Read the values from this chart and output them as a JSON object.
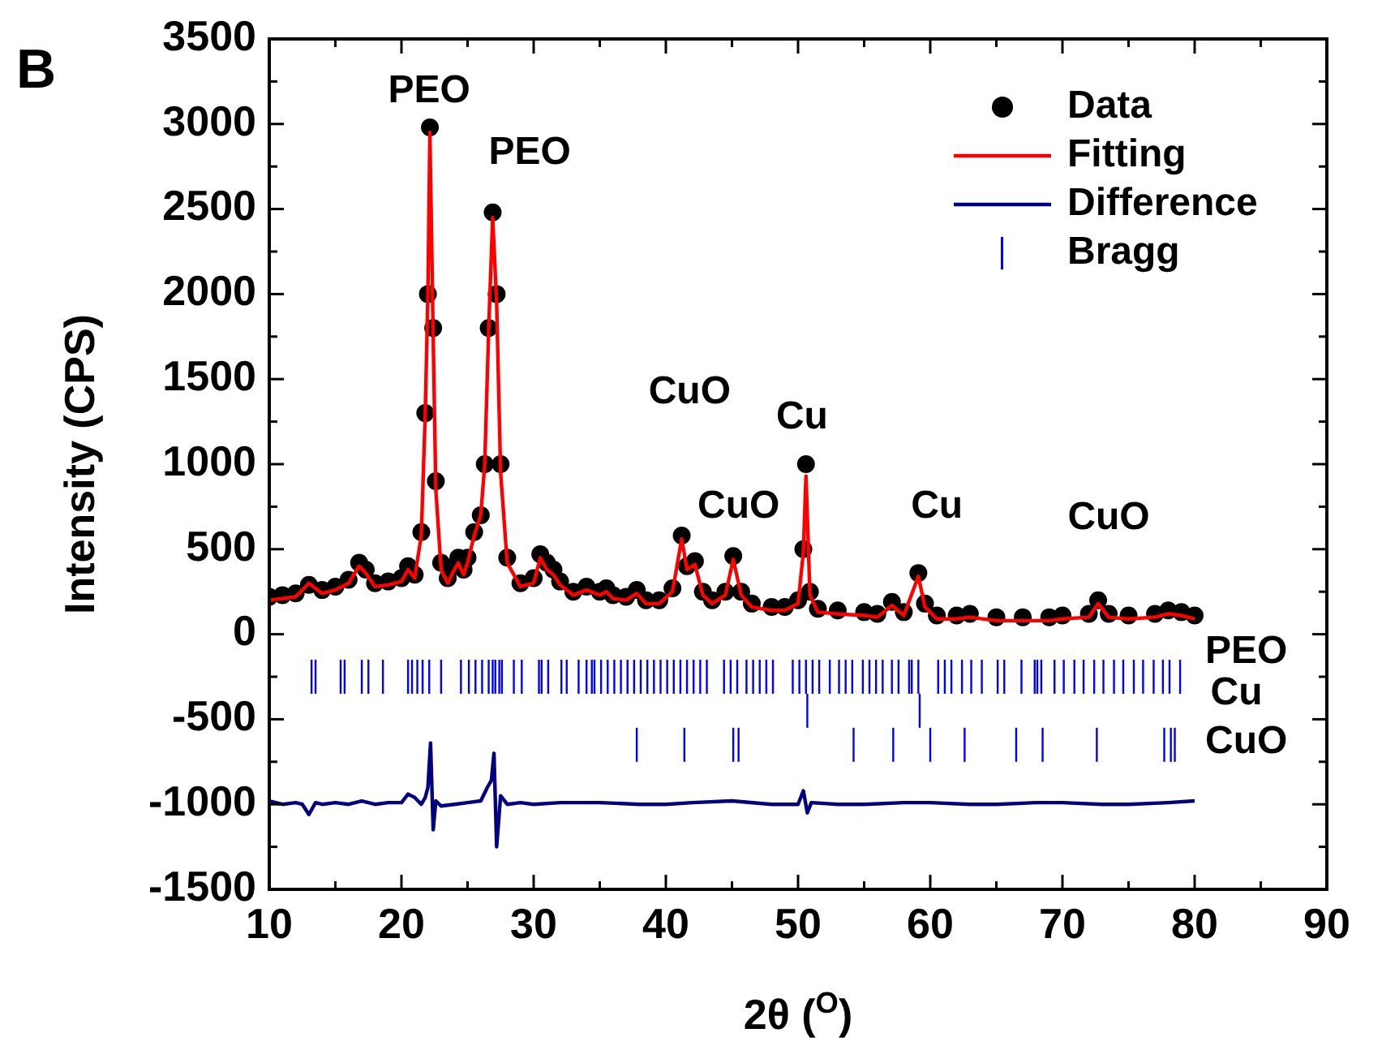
{
  "chart_data": {
    "type": "scatter",
    "title": "B",
    "xlabel": "2θ ($^{O}$)",
    "ylabel": "Intensity (CPS)",
    "xlim": [
      10,
      90
    ],
    "xticks": [
      10,
      {
        "value": 15,
        "label": null
      },
      20,
      {
        "value": 25,
        "label": null
      },
      30,
      {
        "value": 35,
        "label": null
      },
      40,
      {
        "value": 45,
        "label": null
      },
      50,
      {
        "value": 55,
        "label": null
      },
      60,
      {
        "value": 65,
        "label": null
      },
      70,
      {
        "value": 75,
        "label": null
      },
      80,
      {
        "value": 85,
        "label": null
      },
      90
    ],
    "ylim": [
      -1500,
      3500
    ],
    "yticks": [
      -1500,
      {
        "value": -1250,
        "label": null
      },
      -1000,
      {
        "value": -750,
        "label": null
      },
      -500,
      {
        "value": -250,
        "label": null
      },
      0,
      {
        "value": 250,
        "label": null
      },
      500,
      {
        "value": 750,
        "label": null
      },
      1000,
      {
        "value": 1250,
        "label": null
      },
      1500,
      {
        "value": 1750,
        "label": null
      },
      2000,
      {
        "value": 2250,
        "label": null
      },
      2500,
      {
        "value": 2750,
        "label": null
      },
      3000,
      {
        "value": 3250,
        "label": null
      },
      3500
    ],
    "legend": "top right",
    "grid": false,
    "series": [
      {
        "name": "Data",
        "marker": "circle",
        "color": "#000000",
        "x": [
          10,
          11,
          12,
          13,
          14,
          15,
          16,
          16.8,
          17.3,
          18,
          19,
          20,
          20.5,
          21,
          21.5,
          21.8,
          22,
          22.15,
          22.4,
          22.6,
          23,
          23.5,
          24,
          24.3,
          24.7,
          25,
          25.5,
          26,
          26.3,
          26.6,
          26.9,
          27.2,
          27.5,
          28,
          29,
          30,
          30.5,
          31,
          31.5,
          32,
          33,
          34,
          35,
          35.5,
          36,
          37,
          37.8,
          38.5,
          39.5,
          40.5,
          41.2,
          41.6,
          42.2,
          42.8,
          43.5,
          44.5,
          45.1,
          45.7,
          46.5,
          48,
          49,
          50,
          50.4,
          50.6,
          50.9,
          51.5,
          53,
          55,
          56,
          57.1,
          58,
          59.1,
          59.6,
          60.5,
          62,
          63,
          65,
          67,
          69,
          70,
          72,
          72.7,
          73.5,
          75,
          77,
          78,
          79,
          80
        ],
        "values": [
          220,
          230,
          240,
          290,
          260,
          280,
          320,
          420,
          380,
          300,
          310,
          330,
          400,
          350,
          600,
          1300,
          2000,
          2980,
          1800,
          900,
          420,
          330,
          400,
          450,
          380,
          450,
          600,
          700,
          1000,
          1800,
          2480,
          2000,
          1000,
          450,
          300,
          330,
          470,
          420,
          380,
          310,
          250,
          280,
          250,
          270,
          230,
          220,
          260,
          200,
          200,
          270,
          580,
          400,
          430,
          250,
          200,
          250,
          460,
          250,
          180,
          160,
          160,
          200,
          500,
          1000,
          250,
          150,
          140,
          130,
          120,
          190,
          130,
          360,
          180,
          110,
          110,
          120,
          100,
          100,
          100,
          110,
          120,
          200,
          120,
          110,
          120,
          140,
          130,
          110
        ]
      },
      {
        "name": "Fitting",
        "type": "line",
        "marker": "none",
        "color": "#ff0000",
        "x": [
          10,
          11,
          12,
          13,
          14,
          15,
          16,
          16.8,
          17.3,
          18,
          19,
          20,
          20.5,
          21,
          21.5,
          21.8,
          22,
          22.15,
          22.4,
          22.6,
          23,
          23.5,
          24,
          24.3,
          24.7,
          25,
          25.5,
          26,
          26.3,
          26.6,
          26.9,
          27.2,
          27.5,
          28,
          29,
          30,
          30.5,
          31,
          31.5,
          32,
          33,
          34,
          35,
          35.5,
          36,
          37,
          37.8,
          38.5,
          39.5,
          40.5,
          41.2,
          41.6,
          42.2,
          42.8,
          43.5,
          44.5,
          45.1,
          45.7,
          46.5,
          48,
          49,
          50,
          50.4,
          50.6,
          50.9,
          51.5,
          53,
          55,
          56,
          57.1,
          58,
          59.1,
          59.6,
          60.5,
          62,
          63,
          65,
          67,
          69,
          70,
          72,
          72.7,
          73.5,
          75,
          77,
          78,
          79,
          80
        ],
        "values": [
          200,
          210,
          220,
          300,
          240,
          260,
          300,
          400,
          360,
          280,
          290,
          310,
          380,
          330,
          580,
          1300,
          2000,
          2950,
          1750,
          850,
          380,
          300,
          380,
          420,
          350,
          420,
          580,
          700,
          1000,
          1800,
          2450,
          1950,
          950,
          420,
          280,
          300,
          450,
          380,
          350,
          290,
          230,
          260,
          230,
          250,
          210,
          200,
          240,
          180,
          180,
          250,
          560,
          380,
          410,
          230,
          180,
          230,
          440,
          230,
          160,
          140,
          140,
          180,
          480,
          930,
          230,
          130,
          120,
          110,
          100,
          170,
          110,
          340,
          160,
          90,
          90,
          100,
          80,
          80,
          80,
          90,
          100,
          180,
          100,
          90,
          100,
          120,
          110,
          90
        ]
      },
      {
        "name": "Difference",
        "type": "line",
        "marker": "none",
        "color": "#000080",
        "x": [
          10,
          11,
          12,
          12.5,
          13,
          13.5,
          14,
          15,
          16,
          17,
          18,
          19,
          20,
          20.5,
          21,
          21.5,
          21.8,
          22,
          22.2,
          22.4,
          22.6,
          23,
          24,
          25,
          26,
          26.5,
          26.8,
          27,
          27.2,
          27.5,
          28,
          29,
          30,
          32,
          35,
          38,
          40,
          42,
          45,
          48,
          50,
          50.4,
          50.7,
          51,
          53,
          55,
          58,
          60,
          63,
          65,
          68,
          70,
          73,
          75,
          78,
          80
        ],
        "values": [
          -980,
          -1000,
          -990,
          -1000,
          -1060,
          -990,
          -1000,
          -990,
          -1000,
          -980,
          -1000,
          -990,
          -990,
          -940,
          -960,
          -1000,
          -960,
          -900,
          -640,
          -1150,
          -980,
          -1010,
          -1000,
          -990,
          -980,
          -900,
          -860,
          -700,
          -1250,
          -950,
          -1000,
          -990,
          -1000,
          -990,
          -990,
          -1000,
          -1000,
          -990,
          -980,
          -1000,
          -1000,
          -920,
          -1050,
          -990,
          -1000,
          -1000,
          -990,
          -990,
          -1000,
          -1000,
          -990,
          -990,
          -1000,
          -1000,
          -990,
          -980
        ]
      },
      {
        "name": "Bragg",
        "type": "bar",
        "color": "#0000ff",
        "x": [
          13.2,
          13.5,
          15.4,
          15.7,
          17.0,
          17.5,
          18.6,
          20.5,
          20.8,
          21.2,
          21.6,
          22.1,
          23.0,
          24.5,
          25.1,
          25.6,
          26.1,
          26.6,
          26.9,
          27.1,
          27.4,
          27.6,
          28.5,
          29.1,
          30.4,
          30.6,
          31.1,
          32.1,
          32.5,
          33.4,
          34.0,
          34.4,
          34.6,
          35.1,
          35.6,
          36.1,
          36.6,
          37.1,
          37.6,
          37.8,
          38.1,
          38.6,
          39.1,
          39.6,
          40.1,
          40.6,
          41.1,
          41.4,
          41.6,
          42.1,
          42.6,
          43.1,
          44.4,
          44.9,
          45.1,
          45.4,
          45.5,
          46.1,
          46.6,
          47.1,
          47.6,
          48.1,
          49.6,
          50.1,
          50.6,
          50.7,
          51.1,
          51.6,
          52.4,
          53.1,
          53.6,
          54.1,
          54.2,
          54.9,
          55.4,
          55.9,
          56.4,
          57.1,
          57.2,
          57.6,
          58.4,
          58.6,
          59.1,
          59.2,
          60.0,
          60.6,
          61.1,
          61.6,
          62.4,
          62.6,
          63.1,
          63.9,
          65.1,
          65.6,
          66.5,
          66.9,
          67.9,
          68.1,
          68.4,
          68.5,
          69.4,
          70.1,
          70.9,
          71.6,
          72.4,
          72.6,
          73.1,
          73.9,
          74.6,
          75.4,
          76.1,
          76.9,
          77.6,
          77.7,
          78.1,
          78.2,
          78.5,
          78.9
        ],
        "base": [
          -350,
          -350,
          -350,
          -350,
          -350,
          -350,
          -350,
          -350,
          -350,
          -350,
          -350,
          -350,
          -350,
          -350,
          -350,
          -350,
          -350,
          -350,
          -350,
          -350,
          -350,
          -350,
          -350,
          -350,
          -350,
          -350,
          -350,
          -350,
          -350,
          -350,
          -350,
          -350,
          -350,
          -350,
          -350,
          -350,
          -350,
          -350,
          -350,
          -750,
          -350,
          -350,
          -350,
          -350,
          -350,
          -350,
          -350,
          -750,
          -350,
          -350,
          -350,
          -350,
          -350,
          -350,
          -750,
          -350,
          -750,
          -350,
          -350,
          -350,
          -350,
          -350,
          -350,
          -350,
          -350,
          -550,
          -350,
          -350,
          -350,
          -350,
          -350,
          -350,
          -750,
          -350,
          -350,
          -350,
          -350,
          -350,
          -750,
          -350,
          -350,
          -350,
          -350,
          -550,
          -750,
          -350,
          -350,
          -350,
          -350,
          -750,
          -350,
          -350,
          -350,
          -350,
          -750,
          -350,
          -350,
          -350,
          -350,
          -750,
          -350,
          -350,
          -350,
          -350,
          -350,
          -750,
          -350,
          -350,
          -350,
          -350,
          -350,
          -350,
          -350,
          -750,
          -350,
          -750,
          -750,
          -350
        ],
        "values": [
          200,
          200,
          200,
          200,
          200,
          200,
          200,
          200,
          200,
          200,
          200,
          200,
          200,
          200,
          200,
          200,
          200,
          200,
          200,
          200,
          200,
          200,
          200,
          200,
          200,
          200,
          200,
          200,
          200,
          200,
          200,
          200,
          200,
          200,
          200,
          200,
          200,
          200,
          200,
          200,
          200,
          200,
          200,
          200,
          200,
          200,
          200,
          200,
          200,
          200,
          200,
          200,
          200,
          200,
          200,
          200,
          200,
          200,
          200,
          200,
          200,
          200,
          200,
          200,
          200,
          200,
          200,
          200,
          200,
          200,
          200,
          200,
          200,
          200,
          200,
          200,
          200,
          200,
          200,
          200,
          200,
          200,
          200,
          200,
          200,
          200,
          200,
          200,
          200,
          200,
          200,
          200,
          200,
          200,
          200,
          200,
          200,
          200,
          200,
          200,
          200,
          200,
          200,
          200,
          200,
          200,
          200,
          200,
          200,
          200,
          200,
          200,
          200,
          200,
          200,
          200,
          200,
          200
        ]
      }
    ],
    "annotations": [
      "PEO",
      "PEO",
      "CuO",
      "CuO",
      "Cu",
      "Cu",
      "CuO",
      "PEO",
      "Cu",
      "CuO"
    ]
  }
}
